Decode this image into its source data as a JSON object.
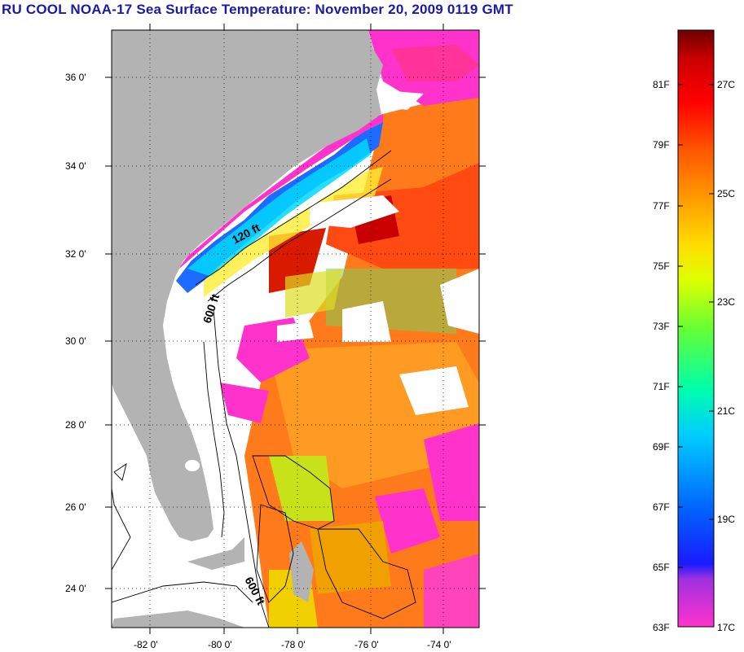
{
  "title": "RU COOL  NOAA-17  Sea Surface Temperature:  November 20, 2009 0119 GMT",
  "map": {
    "lon_range": [
      -83,
      -73
    ],
    "lat_range": [
      23,
      37
    ],
    "lat_ticks": [
      {
        "value": 36,
        "label": "36 0'"
      },
      {
        "value": 34,
        "label": "34 0'"
      },
      {
        "value": 32,
        "label": "32 0'"
      },
      {
        "value": 30,
        "label": "30 0'"
      },
      {
        "value": 28,
        "label": "28 0'"
      },
      {
        "value": 26,
        "label": "26 0'"
      },
      {
        "value": 24,
        "label": "24 0'"
      }
    ],
    "lon_ticks": [
      {
        "value": -82,
        "label": "-82 0'"
      },
      {
        "value": -80,
        "label": "-80 0'"
      },
      {
        "value": -78,
        "label": "-78 0'"
      },
      {
        "value": -76,
        "label": "-76 0'"
      },
      {
        "value": -74,
        "label": "-74 0'"
      }
    ],
    "contour_labels": [
      {
        "text": "120 ft"
      },
      {
        "text": "600 ft"
      },
      {
        "text": "600 ft"
      }
    ],
    "colors": {
      "land": "#b3b3b3",
      "no_data": "#ffffff",
      "grid": "#000000"
    }
  },
  "colorbar": {
    "range_f": [
      63,
      83
    ],
    "fahrenheit_labels": [
      "81F",
      "79F",
      "77F",
      "75F",
      "73F",
      "71F",
      "69F",
      "67F",
      "65F",
      "63F"
    ],
    "celsius_labels": [
      "27C",
      "25C",
      "23C",
      "21C",
      "19C",
      "17C"
    ],
    "stops": [
      "#ff33cc",
      "#9b30ff",
      "#1a1aff",
      "#0066ff",
      "#00ccff",
      "#00ffcc",
      "#33ff66",
      "#aaff00",
      "#ffff00",
      "#ffaa00",
      "#ff6600",
      "#ff0000",
      "#cc0000",
      "#7a0000"
    ]
  }
}
